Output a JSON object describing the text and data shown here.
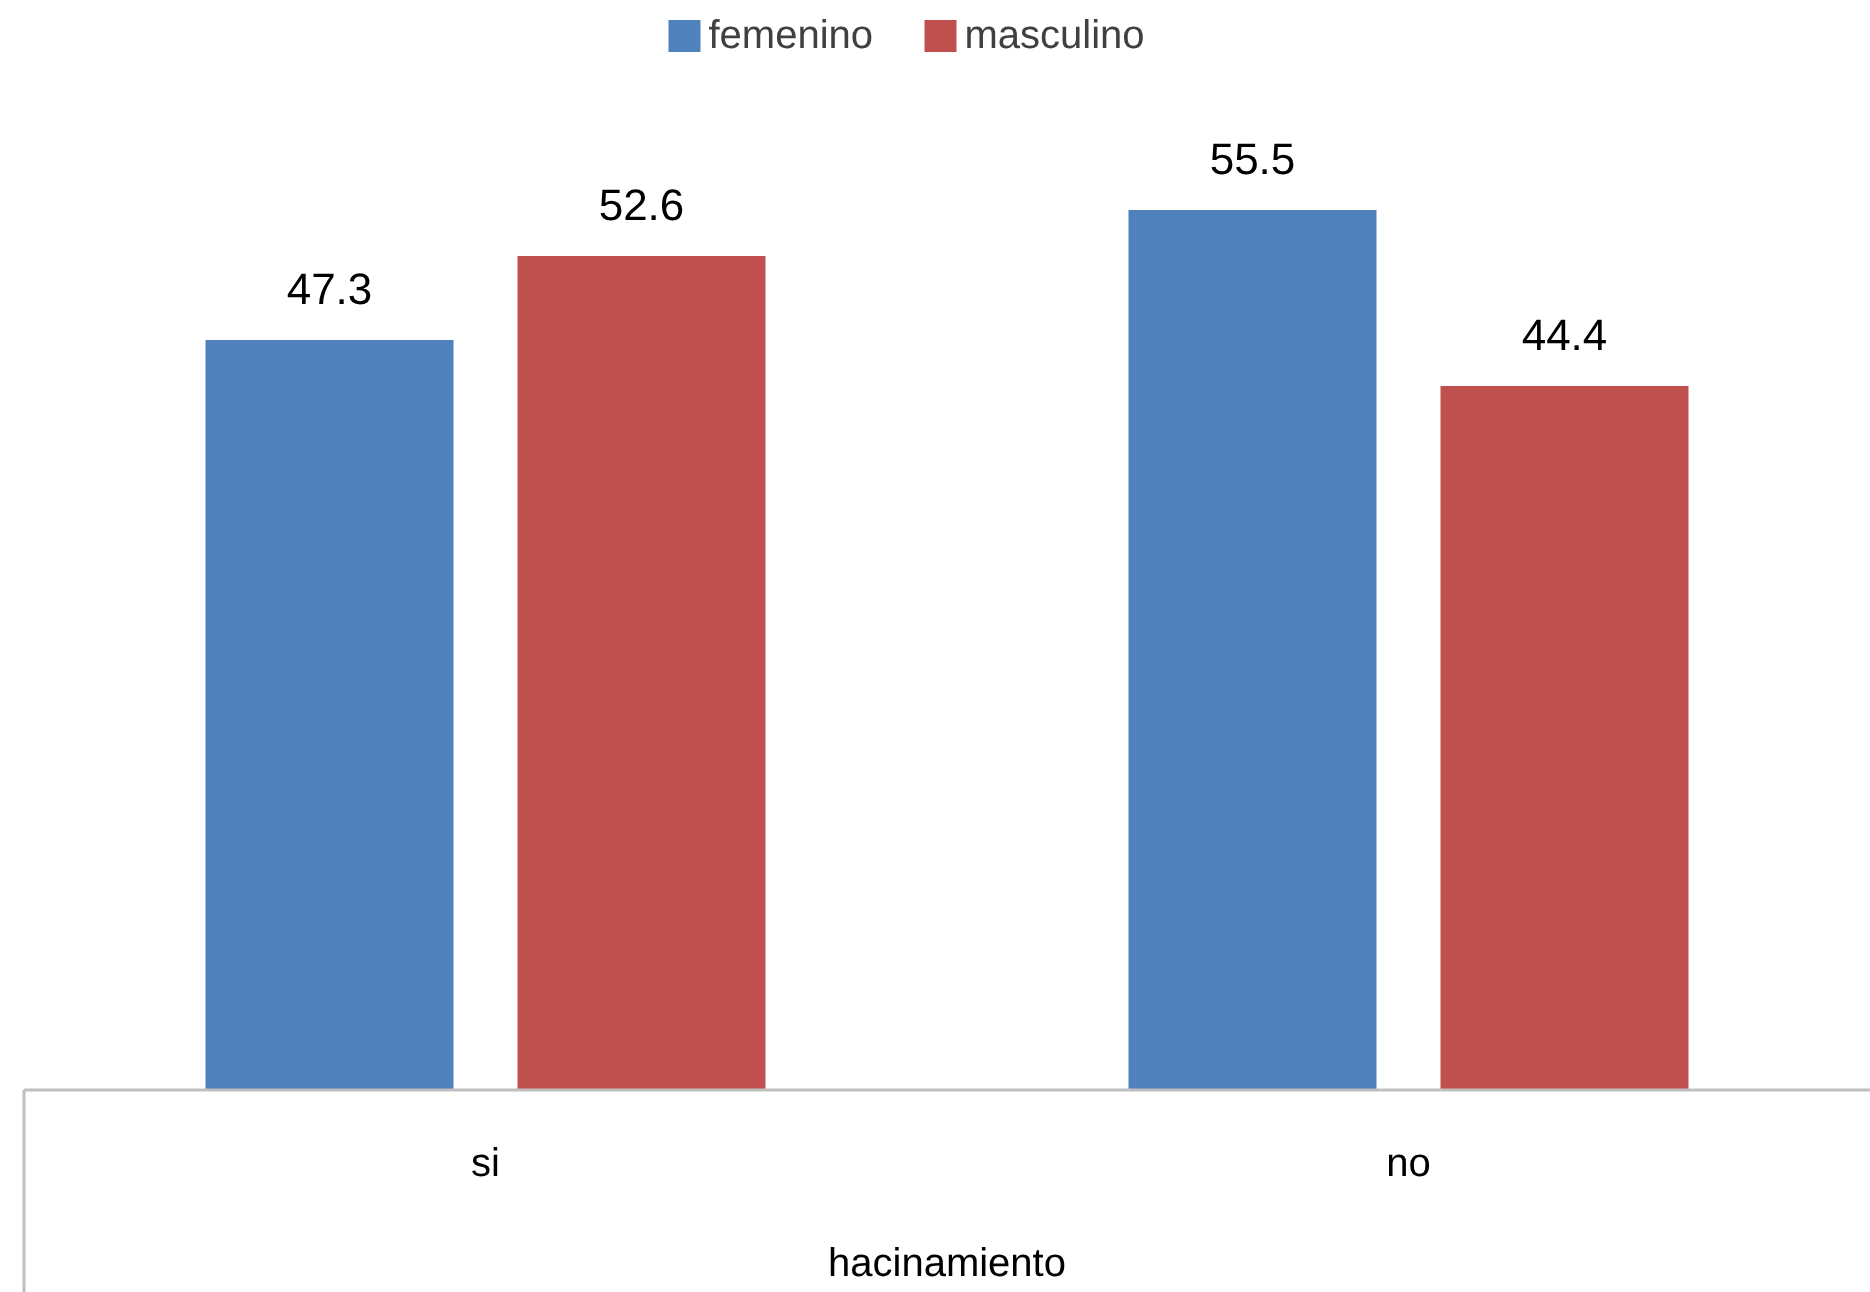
{
  "chart_data": {
    "type": "bar",
    "xlabel": "hacinamiento",
    "categories": [
      "si",
      "no"
    ],
    "series": [
      {
        "name": "femenino",
        "color": "#4f81bd",
        "values": [
          47.3,
          55.5
        ]
      },
      {
        "name": "masculino",
        "color": "#c0504d",
        "values": [
          52.6,
          44.4
        ]
      }
    ],
    "data_labels": true,
    "legend": "top"
  }
}
